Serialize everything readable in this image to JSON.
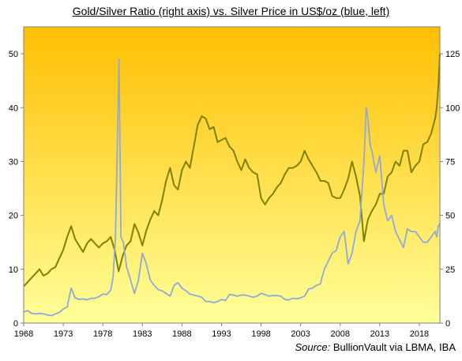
{
  "chart_data": {
    "type": "line",
    "title": "Gold/Silver Ratio (right axis) vs. Silver Price in US$/oz (blue, left)",
    "source_label": "Source:",
    "source_text": "BullionVault via LBMA, IBA",
    "x_tick_labels": [
      "1968",
      "1973",
      "1978",
      "1983",
      "1988",
      "1993",
      "1998",
      "2003",
      "2008",
      "2013",
      "2018"
    ],
    "xlim": [
      1968,
      2020.6
    ],
    "y_left": {
      "ticks": [
        "0",
        "10",
        "20",
        "30",
        "40",
        "50"
      ],
      "ylim": [
        0,
        55
      ]
    },
    "y_right": {
      "ticks": [
        "0",
        "25",
        "50",
        "75",
        "100",
        "125"
      ],
      "ylim": [
        0,
        137.5
      ]
    },
    "grid": false,
    "background_gradient": [
      "#ffbf00",
      "#ffff99"
    ],
    "series": [
      {
        "axis": "right",
        "color": "#808000",
        "x": [
          1968.0,
          1968.5,
          1969.0,
          1969.5,
          1970.0,
          1970.5,
          1971.0,
          1971.5,
          1972.0,
          1972.5,
          1973.0,
          1973.5,
          1974.0,
          1974.5,
          1975.0,
          1975.5,
          1976.0,
          1976.5,
          1977.0,
          1977.5,
          1978.0,
          1978.5,
          1979.0,
          1979.5,
          1980.0,
          1980.5,
          1981.0,
          1981.5,
          1982.0,
          1982.5,
          1983.0,
          1983.5,
          1984.0,
          1984.5,
          1985.0,
          1985.5,
          1986.0,
          1986.5,
          1987.0,
          1987.5,
          1988.0,
          1988.5,
          1989.0,
          1989.5,
          1990.0,
          1990.5,
          1991.0,
          1991.5,
          1992.0,
          1992.5,
          1993.0,
          1993.5,
          1994.0,
          1994.5,
          1995.0,
          1995.5,
          1996.0,
          1996.5,
          1997.0,
          1997.5,
          1998.0,
          1998.5,
          1999.0,
          1999.5,
          2000.0,
          2000.5,
          2001.0,
          2001.5,
          2002.0,
          2002.5,
          2003.0,
          2003.5,
          2004.0,
          2004.5,
          2005.0,
          2005.5,
          2006.0,
          2006.5,
          2007.0,
          2007.5,
          2008.0,
          2008.5,
          2009.0,
          2009.5,
          2010.0,
          2010.5,
          2011.0,
          2011.5,
          2012.0,
          2012.5,
          2013.0,
          2013.5,
          2014.0,
          2014.5,
          2015.0,
          2015.5,
          2016.0,
          2016.5,
          2017.0,
          2017.5,
          2018.0,
          2018.5,
          2019.0,
          2019.5,
          2020.0,
          2020.2,
          2020.4,
          2020.6
        ],
        "values": [
          17,
          19,
          21,
          23,
          25,
          22,
          23,
          25,
          26,
          30,
          34,
          40,
          45,
          39,
          36,
          33,
          37,
          39,
          37,
          35,
          37,
          38,
          40,
          34,
          24,
          31,
          36,
          38,
          46,
          42,
          36,
          43,
          48,
          52,
          50,
          57,
          66,
          72,
          64,
          62,
          71,
          75,
          72,
          82,
          92,
          96,
          95,
          90,
          91,
          84,
          85,
          86,
          82,
          80,
          75,
          71,
          76,
          72,
          70,
          69,
          58,
          55,
          58,
          60,
          63,
          65,
          69,
          72,
          72,
          73,
          75,
          80,
          76,
          73,
          70,
          66,
          66,
          65,
          59,
          58,
          58,
          62,
          67,
          75,
          68,
          59,
          38,
          48,
          52,
          55,
          60,
          60,
          68,
          70,
          75,
          73,
          80,
          80,
          70,
          73,
          75,
          83,
          84,
          88,
          95,
          100,
          110,
          125
        ]
      },
      {
        "axis": "left",
        "color": "#8eaadb",
        "x": [
          1968.0,
          1968.5,
          1969.0,
          1969.5,
          1970.0,
          1970.5,
          1971.0,
          1971.5,
          1972.0,
          1972.5,
          1973.0,
          1973.5,
          1974.0,
          1974.5,
          1975.0,
          1975.5,
          1976.0,
          1976.5,
          1977.0,
          1977.5,
          1978.0,
          1978.5,
          1979.0,
          1979.3,
          1979.6,
          1979.8,
          1980.05,
          1980.3,
          1980.6,
          1981.0,
          1981.5,
          1982.0,
          1982.5,
          1983.0,
          1983.5,
          1984.0,
          1984.5,
          1985.0,
          1985.5,
          1986.0,
          1986.5,
          1987.0,
          1987.5,
          1988.0,
          1988.5,
          1989.0,
          1989.5,
          1990.0,
          1990.5,
          1991.0,
          1991.5,
          1992.0,
          1992.5,
          1993.0,
          1993.5,
          1994.0,
          1994.5,
          1995.0,
          1995.5,
          1996.0,
          1996.5,
          1997.0,
          1997.5,
          1998.0,
          1998.5,
          1999.0,
          1999.5,
          2000.0,
          2000.5,
          2001.0,
          2001.5,
          2002.0,
          2002.5,
          2003.0,
          2003.5,
          2004.0,
          2004.5,
          2005.0,
          2005.5,
          2006.0,
          2006.5,
          2007.0,
          2007.5,
          2008.0,
          2008.5,
          2009.0,
          2009.5,
          2010.0,
          2010.5,
          2011.0,
          2011.3,
          2011.5,
          2011.8,
          2012.0,
          2012.5,
          2013.0,
          2013.5,
          2014.0,
          2014.5,
          2015.0,
          2015.5,
          2016.0,
          2016.5,
          2017.0,
          2017.5,
          2018.0,
          2018.5,
          2019.0,
          2019.5,
          2020.0,
          2020.2,
          2020.4,
          2020.6
        ],
        "values": [
          2.1,
          2.3,
          1.8,
          1.7,
          1.8,
          1.7,
          1.5,
          1.4,
          1.7,
          2.0,
          2.6,
          3.0,
          6.5,
          4.7,
          4.4,
          4.5,
          4.3,
          4.6,
          4.6,
          4.9,
          5.4,
          5.3,
          6.1,
          8.5,
          16.0,
          30.0,
          49.0,
          16.0,
          15.0,
          10.5,
          8.0,
          5.5,
          8.0,
          13.0,
          11.0,
          8.0,
          7.0,
          6.2,
          6.0,
          5.5,
          5.0,
          7.0,
          7.5,
          6.5,
          6.0,
          5.4,
          5.2,
          5.0,
          4.8,
          4.0,
          4.0,
          3.8,
          4.0,
          4.4,
          4.2,
          5.3,
          5.2,
          5.0,
          5.2,
          5.2,
          5.0,
          4.8,
          5.0,
          5.5,
          5.3,
          5.0,
          5.1,
          5.1,
          5.0,
          4.4,
          4.3,
          4.6,
          4.5,
          4.7,
          5.0,
          6.3,
          6.5,
          7.0,
          7.3,
          10.0,
          11.5,
          13.0,
          13.5,
          16.0,
          17.0,
          11.0,
          13.0,
          17.0,
          19.0,
          30.0,
          40.0,
          38.0,
          33.0,
          32.0,
          28.0,
          31.0,
          22.0,
          19.0,
          20.0,
          17.0,
          15.5,
          14.0,
          17.5,
          17.0,
          17.0,
          16.0,
          15.0,
          15.0,
          16.0,
          17.0,
          16.0,
          18.0,
          18.5
        ]
      }
    ]
  }
}
